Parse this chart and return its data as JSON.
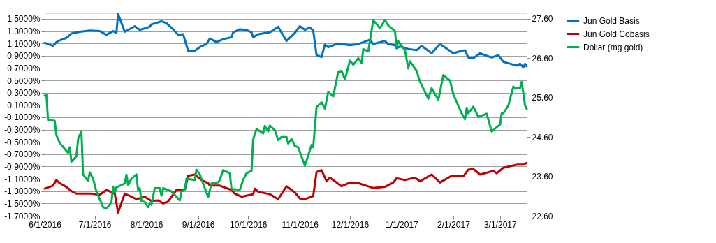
{
  "chart_data": {
    "type": "line",
    "xlim": [
      "2016-06-01",
      "2017-03-17"
    ],
    "xticks": [
      {
        "value": "2016-06-01",
        "label": "6/1/2016"
      },
      {
        "value": "2016-07-01",
        "label": "7/1/2016"
      },
      {
        "value": "2016-08-01",
        "label": "8/1/2016"
      },
      {
        "value": "2016-09-01",
        "label": "9/1/2016"
      },
      {
        "value": "2016-10-01",
        "label": "10/1/2016"
      },
      {
        "value": "2016-11-01",
        "label": "11/1/2016"
      },
      {
        "value": "2016-12-01",
        "label": "12/1/2016"
      },
      {
        "value": "2017-01-01",
        "label": "1/1/2017"
      },
      {
        "value": "2017-02-01",
        "label": "2/1/2017"
      },
      {
        "value": "2017-03-01",
        "label": "3/1/2017"
      }
    ],
    "ylim": [
      -1.7,
      1.59
    ],
    "yticks": [
      {
        "value": 1.5,
        "label": "1.5000%"
      },
      {
        "value": 1.3,
        "label": "1.3000%"
      },
      {
        "value": 1.1,
        "label": "1.1000%"
      },
      {
        "value": 0.9,
        "label": "0.9000%"
      },
      {
        "value": 0.7,
        "label": "0.7000%"
      },
      {
        "value": 0.5,
        "label": "0.5000%"
      },
      {
        "value": 0.3,
        "label": "0.3000%"
      },
      {
        "value": 0.1,
        "label": "0.1000%"
      },
      {
        "value": -0.1,
        "label": "-0.1000%"
      },
      {
        "value": -0.3,
        "label": "-0.3000%"
      },
      {
        "value": -0.5,
        "label": "-0.5000%"
      },
      {
        "value": -0.7,
        "label": "-0.7000%"
      },
      {
        "value": -0.9,
        "label": "-0.9000%"
      },
      {
        "value": -1.1,
        "label": "-1.1000%"
      },
      {
        "value": -1.3,
        "label": "-1.3000%"
      },
      {
        "value": -1.5,
        "label": "-1.5000%"
      },
      {
        "value": -1.7,
        "label": "-1.7000%"
      }
    ],
    "y2lim": [
      22.6,
      27.74
    ],
    "y2ticks": [
      {
        "value": 27.6,
        "label": "27.60"
      },
      {
        "value": 26.6,
        "label": "26.60"
      },
      {
        "value": 25.6,
        "label": "25.60"
      },
      {
        "value": 24.6,
        "label": "24.60"
      },
      {
        "value": 23.6,
        "label": "23.60"
      },
      {
        "value": 22.6,
        "label": "22.60"
      }
    ],
    "grid": "y",
    "legend": "right",
    "series": [
      {
        "name": "Jun Gold Basis",
        "color": "#0070c0",
        "x": [
          "2016-06-01",
          "2016-06-06",
          "2016-06-08",
          "2016-06-10",
          "2016-06-14",
          "2016-06-17",
          "2016-06-22",
          "2016-06-28",
          "2016-07-04",
          "2016-07-08",
          "2016-07-12",
          "2016-07-14",
          "2016-07-15",
          "2016-07-19",
          "2016-07-25",
          "2016-07-28",
          "2016-08-03",
          "2016-08-04",
          "2016-08-10",
          "2016-08-13",
          "2016-08-17",
          "2016-08-20",
          "2016-08-23",
          "2016-08-26",
          "2016-08-30",
          "2016-09-02",
          "2016-09-06",
          "2016-09-08",
          "2016-09-12",
          "2016-09-16",
          "2016-09-21",
          "2016-09-22",
          "2016-09-26",
          "2016-09-30",
          "2016-10-03",
          "2016-10-04",
          "2016-10-07",
          "2016-10-14",
          "2016-10-19",
          "2016-10-24",
          "2016-10-29",
          "2016-11-01",
          "2016-11-04",
          "2016-11-07",
          "2016-11-09",
          "2016-11-11",
          "2016-11-14",
          "2016-11-16",
          "2016-11-18",
          "2016-11-24",
          "2016-12-01",
          "2016-12-06",
          "2016-12-13",
          "2016-12-15",
          "2016-12-22",
          "2016-12-24",
          "2016-12-28",
          "2016-12-29",
          "2016-12-31",
          "2017-01-05",
          "2017-01-10",
          "2017-01-13",
          "2017-01-19",
          "2017-01-24",
          "2017-02-01",
          "2017-02-06",
          "2017-02-08",
          "2017-02-10",
          "2017-02-13",
          "2017-02-17",
          "2017-02-24",
          "2017-02-28",
          "2017-03-03",
          "2017-03-11",
          "2017-03-13",
          "2017-03-15",
          "2017-03-16",
          "2017-03-17"
        ],
        "values": [
          1.11,
          1.06,
          1.12,
          1.15,
          1.19,
          1.26,
          1.29,
          1.31,
          1.3,
          1.24,
          1.3,
          1.27,
          1.58,
          1.29,
          1.38,
          1.32,
          1.37,
          1.41,
          1.46,
          1.43,
          1.33,
          1.24,
          1.25,
          0.98,
          0.98,
          1.04,
          1.09,
          1.18,
          1.12,
          1.17,
          1.2,
          1.28,
          1.33,
          1.32,
          1.28,
          1.2,
          1.25,
          1.28,
          1.37,
          1.14,
          1.27,
          1.38,
          1.32,
          1.36,
          1.31,
          0.91,
          0.88,
          1.08,
          1.04,
          1.1,
          1.07,
          1.09,
          1.16,
          1.09,
          1.14,
          1.09,
          1.07,
          1.02,
          1.05,
          1.01,
          0.99,
          1.06,
          0.94,
          1.09,
          0.94,
          0.98,
          0.99,
          0.87,
          0.86,
          0.94,
          0.87,
          0.91,
          0.8,
          0.74,
          0.77,
          0.71,
          0.77,
          0.73
        ]
      },
      {
        "name": "Jun Gold Cobasis",
        "color": "#c00000",
        "x": [
          "2016-06-01",
          "2016-06-06",
          "2016-06-08",
          "2016-06-10",
          "2016-06-14",
          "2016-06-17",
          "2016-06-20",
          "2016-06-29",
          "2016-07-04",
          "2016-07-08",
          "2016-07-13",
          "2016-07-15",
          "2016-07-19",
          "2016-07-26",
          "2016-07-31",
          "2016-08-04",
          "2016-08-08",
          "2016-08-11",
          "2016-08-14",
          "2016-08-19",
          "2016-08-24",
          "2016-08-26",
          "2016-08-30",
          "2016-09-03",
          "2016-09-07",
          "2016-09-08",
          "2016-09-14",
          "2016-09-21",
          "2016-09-23",
          "2016-09-27",
          "2016-10-04",
          "2016-10-05",
          "2016-10-07",
          "2016-10-14",
          "2016-10-19",
          "2016-10-24",
          "2016-10-29",
          "2016-11-01",
          "2016-11-04",
          "2016-11-09",
          "2016-11-11",
          "2016-11-14",
          "2016-11-17",
          "2016-11-19",
          "2016-11-26",
          "2016-12-01",
          "2016-12-06",
          "2016-12-13",
          "2016-12-15",
          "2016-12-22",
          "2016-12-27",
          "2016-12-29",
          "2017-01-03",
          "2017-01-09",
          "2017-01-12",
          "2017-01-19",
          "2017-01-24",
          "2017-01-31",
          "2017-02-07",
          "2017-02-10",
          "2017-02-13",
          "2017-02-17",
          "2017-02-25",
          "2017-02-27",
          "2017-03-03",
          "2017-03-11",
          "2017-03-15",
          "2017-03-17"
        ],
        "values": [
          -1.26,
          -1.21,
          -1.12,
          -1.17,
          -1.23,
          -1.3,
          -1.34,
          -1.34,
          -1.36,
          -1.28,
          -1.34,
          -1.65,
          -1.34,
          -1.43,
          -1.39,
          -1.46,
          -1.45,
          -1.5,
          -1.47,
          -1.28,
          -1.28,
          -1.05,
          -1.03,
          -1.12,
          -1.17,
          -1.21,
          -1.21,
          -1.28,
          -1.34,
          -1.39,
          -1.35,
          -1.26,
          -1.31,
          -1.35,
          -1.43,
          -1.22,
          -1.32,
          -1.42,
          -1.43,
          -1.38,
          -0.99,
          -0.96,
          -1.14,
          -1.08,
          -1.22,
          -1.16,
          -1.17,
          -1.23,
          -1.25,
          -1.23,
          -1.16,
          -1.09,
          -1.12,
          -1.08,
          -1.14,
          -1.03,
          -1.16,
          -1.05,
          -1.06,
          -0.95,
          -0.94,
          -1.03,
          -0.97,
          -1.01,
          -0.92,
          -0.87,
          -0.87,
          -0.84
        ]
      },
      {
        "name": "Dollar (mg gold)",
        "color": "#00b050",
        "axis": "y2",
        "x": [
          "2016-06-01",
          "2016-06-02",
          "2016-06-03",
          "2016-06-07",
          "2016-06-08",
          "2016-06-10",
          "2016-06-15",
          "2016-06-16",
          "2016-06-17",
          "2016-06-20",
          "2016-06-21",
          "2016-06-23",
          "2016-06-24",
          "2016-06-27",
          "2016-06-28",
          "2016-06-30",
          "2016-07-02",
          "2016-07-06",
          "2016-07-08",
          "2016-07-11",
          "2016-07-12",
          "2016-07-13",
          "2016-07-14",
          "2016-07-19",
          "2016-07-20",
          "2016-07-21",
          "2016-07-23",
          "2016-07-26",
          "2016-07-27",
          "2016-07-28",
          "2016-07-29",
          "2016-07-31",
          "2016-08-02",
          "2016-08-03",
          "2016-08-04",
          "2016-08-06",
          "2016-08-09",
          "2016-08-10",
          "2016-08-11",
          "2016-08-16",
          "2016-08-21",
          "2016-08-22",
          "2016-08-24",
          "2016-08-25",
          "2016-08-30",
          "2016-08-31",
          "2016-09-02",
          "2016-09-07",
          "2016-09-09",
          "2016-09-13",
          "2016-09-14",
          "2016-09-16",
          "2016-09-20",
          "2016-09-21",
          "2016-09-26",
          "2016-09-28",
          "2016-09-30",
          "2016-10-03",
          "2016-10-04",
          "2016-10-06",
          "2016-10-10",
          "2016-10-11",
          "2016-10-13",
          "2016-10-14",
          "2016-10-17",
          "2016-10-19",
          "2016-10-21",
          "2016-10-24",
          "2016-10-25",
          "2016-10-27",
          "2016-10-29",
          "2016-10-31",
          "2016-11-04",
          "2016-11-08",
          "2016-11-09",
          "2016-11-11",
          "2016-11-14",
          "2016-11-16",
          "2016-11-18",
          "2016-11-21",
          "2016-11-24",
          "2016-11-26",
          "2016-11-28",
          "2016-12-01",
          "2016-12-03",
          "2016-12-06",
          "2016-12-08",
          "2016-12-09",
          "2016-12-12",
          "2016-12-15",
          "2016-12-19",
          "2016-12-22",
          "2016-12-24",
          "2016-12-28",
          "2016-12-29",
          "2016-12-30",
          "2017-01-03",
          "2017-01-05",
          "2017-01-06",
          "2017-01-10",
          "2017-01-12",
          "2017-01-17",
          "2017-01-19",
          "2017-01-23",
          "2017-01-26",
          "2017-01-30",
          "2017-02-01",
          "2017-02-06",
          "2017-02-08",
          "2017-02-09",
          "2017-02-10",
          "2017-02-13",
          "2017-02-16",
          "2017-02-21",
          "2017-02-24",
          "2017-02-27",
          "2017-03-01",
          "2017-03-02",
          "2017-03-03",
          "2017-03-06",
          "2017-03-09",
          "2017-03-10",
          "2017-03-13",
          "2017-03-14",
          "2017-03-16",
          "2017-03-17"
        ],
        "values": [
          25.65,
          25.68,
          25.03,
          25.01,
          24.65,
          24.45,
          24.2,
          24.34,
          23.97,
          24.11,
          24.54,
          24.75,
          23.65,
          23.48,
          23.7,
          23.54,
          23.22,
          22.82,
          22.78,
          22.94,
          23.34,
          23.19,
          23.32,
          23.42,
          23.64,
          23.38,
          23.54,
          23.65,
          23.25,
          23.3,
          22.97,
          22.95,
          22.82,
          22.91,
          22.88,
          23.3,
          23.3,
          23.11,
          23.3,
          23.22,
          22.99,
          23.22,
          23.25,
          23.54,
          23.51,
          23.77,
          23.65,
          23.07,
          23.42,
          23.45,
          23.51,
          23.76,
          23.68,
          23.28,
          23.26,
          23.51,
          23.68,
          23.74,
          24.54,
          24.8,
          24.69,
          24.88,
          24.74,
          24.89,
          24.77,
          24.52,
          24.6,
          24.6,
          24.43,
          24.55,
          24.37,
          24.34,
          23.87,
          24.4,
          24.34,
          25.36,
          25.48,
          25.32,
          25.74,
          25.63,
          26.26,
          26.28,
          26.06,
          26.54,
          26.43,
          26.6,
          26.48,
          26.83,
          26.77,
          27.57,
          27.36,
          27.57,
          27.43,
          27.29,
          26.86,
          27.03,
          26.8,
          26.34,
          26.52,
          26.28,
          26.0,
          25.57,
          25.84,
          25.54,
          26.17,
          26.03,
          25.68,
          25.2,
          25.05,
          25.34,
          25.2,
          25.37,
          25.11,
          25.19,
          24.74,
          24.85,
          24.91,
          25.2,
          25.2,
          25.4,
          25.88,
          25.83,
          25.84,
          26.0,
          25.4,
          25.31
        ]
      }
    ]
  }
}
